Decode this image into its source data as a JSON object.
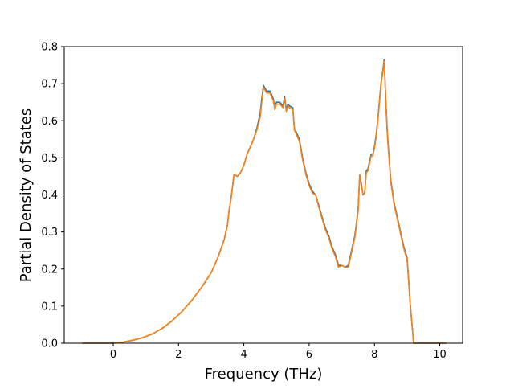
{
  "chart_data": {
    "type": "line",
    "title": "",
    "xlabel": "Frequency (THz)",
    "ylabel": "Partial Density of States",
    "xlim": [
      -1.5,
      10.7
    ],
    "ylim": [
      0.0,
      0.8
    ],
    "xticks": [
      0,
      2,
      4,
      6,
      8,
      10
    ],
    "yticks": [
      0.0,
      0.1,
      0.2,
      0.3,
      0.4,
      0.5,
      0.6,
      0.7,
      0.8
    ],
    "xtick_labels": [
      "0",
      "2",
      "4",
      "6",
      "8",
      "10"
    ],
    "ytick_labels": [
      "0.0",
      "0.1",
      "0.2",
      "0.3",
      "0.4",
      "0.5",
      "0.6",
      "0.7",
      "0.8"
    ],
    "grid": false,
    "legend": "none",
    "series": [
      {
        "color": "#1f77b4",
        "x": [
          -0.95,
          -0.5,
          0.0,
          0.3,
          0.6,
          0.9,
          1.2,
          1.5,
          1.8,
          2.1,
          2.4,
          2.7,
          3.0,
          3.2,
          3.4,
          3.5,
          3.55,
          3.6,
          3.7,
          3.8,
          3.9,
          4.0,
          4.1,
          4.2,
          4.3,
          4.4,
          4.5,
          4.55,
          4.6,
          4.7,
          4.8,
          4.9,
          4.95,
          5.0,
          5.1,
          5.2,
          5.25,
          5.3,
          5.35,
          5.4,
          5.5,
          5.55,
          5.6,
          5.7,
          5.8,
          5.9,
          6.0,
          6.1,
          6.2,
          6.3,
          6.4,
          6.5,
          6.6,
          6.7,
          6.8,
          6.9,
          7.0,
          7.1,
          7.2,
          7.3,
          7.4,
          7.5,
          7.55,
          7.6,
          7.65,
          7.7,
          7.75,
          7.8,
          7.9,
          7.95,
          8.0,
          8.05,
          8.1,
          8.2,
          8.3,
          8.35,
          8.4,
          8.45,
          8.5,
          8.6,
          8.7,
          8.8,
          8.9,
          9.0,
          9.1,
          9.2,
          9.25,
          9.3,
          9.4,
          9.6,
          9.8,
          10.0,
          10.2
        ],
        "y": [
          0.0,
          0.0,
          0.0,
          0.003,
          0.008,
          0.015,
          0.025,
          0.04,
          0.06,
          0.085,
          0.115,
          0.15,
          0.19,
          0.23,
          0.28,
          0.32,
          0.36,
          0.385,
          0.455,
          0.45,
          0.46,
          0.48,
          0.51,
          0.53,
          0.55,
          0.58,
          0.62,
          0.66,
          0.695,
          0.68,
          0.68,
          0.66,
          0.635,
          0.65,
          0.65,
          0.64,
          0.665,
          0.63,
          0.645,
          0.64,
          0.635,
          0.575,
          0.57,
          0.55,
          0.5,
          0.46,
          0.43,
          0.41,
          0.4,
          0.37,
          0.34,
          0.31,
          0.29,
          0.26,
          0.24,
          0.21,
          0.21,
          0.205,
          0.21,
          0.25,
          0.29,
          0.36,
          0.455,
          0.43,
          0.4,
          0.405,
          0.465,
          0.47,
          0.51,
          0.51,
          0.53,
          0.56,
          0.6,
          0.7,
          0.765,
          0.65,
          0.56,
          0.5,
          0.44,
          0.38,
          0.34,
          0.3,
          0.26,
          0.23,
          0.1,
          0.0,
          0.0,
          0.0,
          0.0,
          0.0,
          0.0,
          0.0,
          0.0
        ]
      },
      {
        "color": "#ff7f0e",
        "x": [
          -0.95,
          -0.5,
          0.0,
          0.3,
          0.6,
          0.9,
          1.2,
          1.5,
          1.8,
          2.1,
          2.4,
          2.7,
          3.0,
          3.2,
          3.4,
          3.5,
          3.55,
          3.6,
          3.7,
          3.8,
          3.9,
          4.0,
          4.1,
          4.2,
          4.3,
          4.4,
          4.5,
          4.55,
          4.6,
          4.7,
          4.8,
          4.9,
          4.95,
          5.0,
          5.1,
          5.2,
          5.25,
          5.3,
          5.35,
          5.4,
          5.5,
          5.55,
          5.6,
          5.7,
          5.8,
          5.9,
          6.0,
          6.1,
          6.2,
          6.3,
          6.4,
          6.5,
          6.6,
          6.7,
          6.8,
          6.9,
          7.0,
          7.1,
          7.2,
          7.3,
          7.4,
          7.5,
          7.55,
          7.6,
          7.65,
          7.7,
          7.75,
          7.8,
          7.9,
          7.95,
          8.0,
          8.05,
          8.1,
          8.2,
          8.3,
          8.35,
          8.4,
          8.45,
          8.5,
          8.6,
          8.7,
          8.8,
          8.9,
          9.0,
          9.1,
          9.2,
          9.25,
          9.3,
          9.4,
          9.6,
          9.8,
          10.0,
          10.2
        ],
        "y": [
          0.0,
          0.0,
          0.0,
          0.003,
          0.008,
          0.015,
          0.025,
          0.04,
          0.06,
          0.085,
          0.115,
          0.15,
          0.19,
          0.23,
          0.28,
          0.32,
          0.36,
          0.385,
          0.455,
          0.45,
          0.46,
          0.48,
          0.51,
          0.53,
          0.55,
          0.575,
          0.61,
          0.65,
          0.69,
          0.675,
          0.675,
          0.655,
          0.63,
          0.645,
          0.645,
          0.635,
          0.66,
          0.625,
          0.64,
          0.635,
          0.63,
          0.575,
          0.565,
          0.545,
          0.495,
          0.455,
          0.425,
          0.405,
          0.4,
          0.365,
          0.335,
          0.305,
          0.285,
          0.255,
          0.235,
          0.205,
          0.21,
          0.205,
          0.205,
          0.245,
          0.285,
          0.355,
          0.455,
          0.425,
          0.4,
          0.405,
          0.46,
          0.465,
          0.505,
          0.505,
          0.525,
          0.555,
          0.595,
          0.695,
          0.76,
          0.645,
          0.555,
          0.495,
          0.435,
          0.375,
          0.335,
          0.295,
          0.255,
          0.225,
          0.1,
          0.0,
          0.0,
          0.0,
          0.0,
          0.0,
          0.0,
          0.0,
          0.0
        ]
      }
    ]
  }
}
